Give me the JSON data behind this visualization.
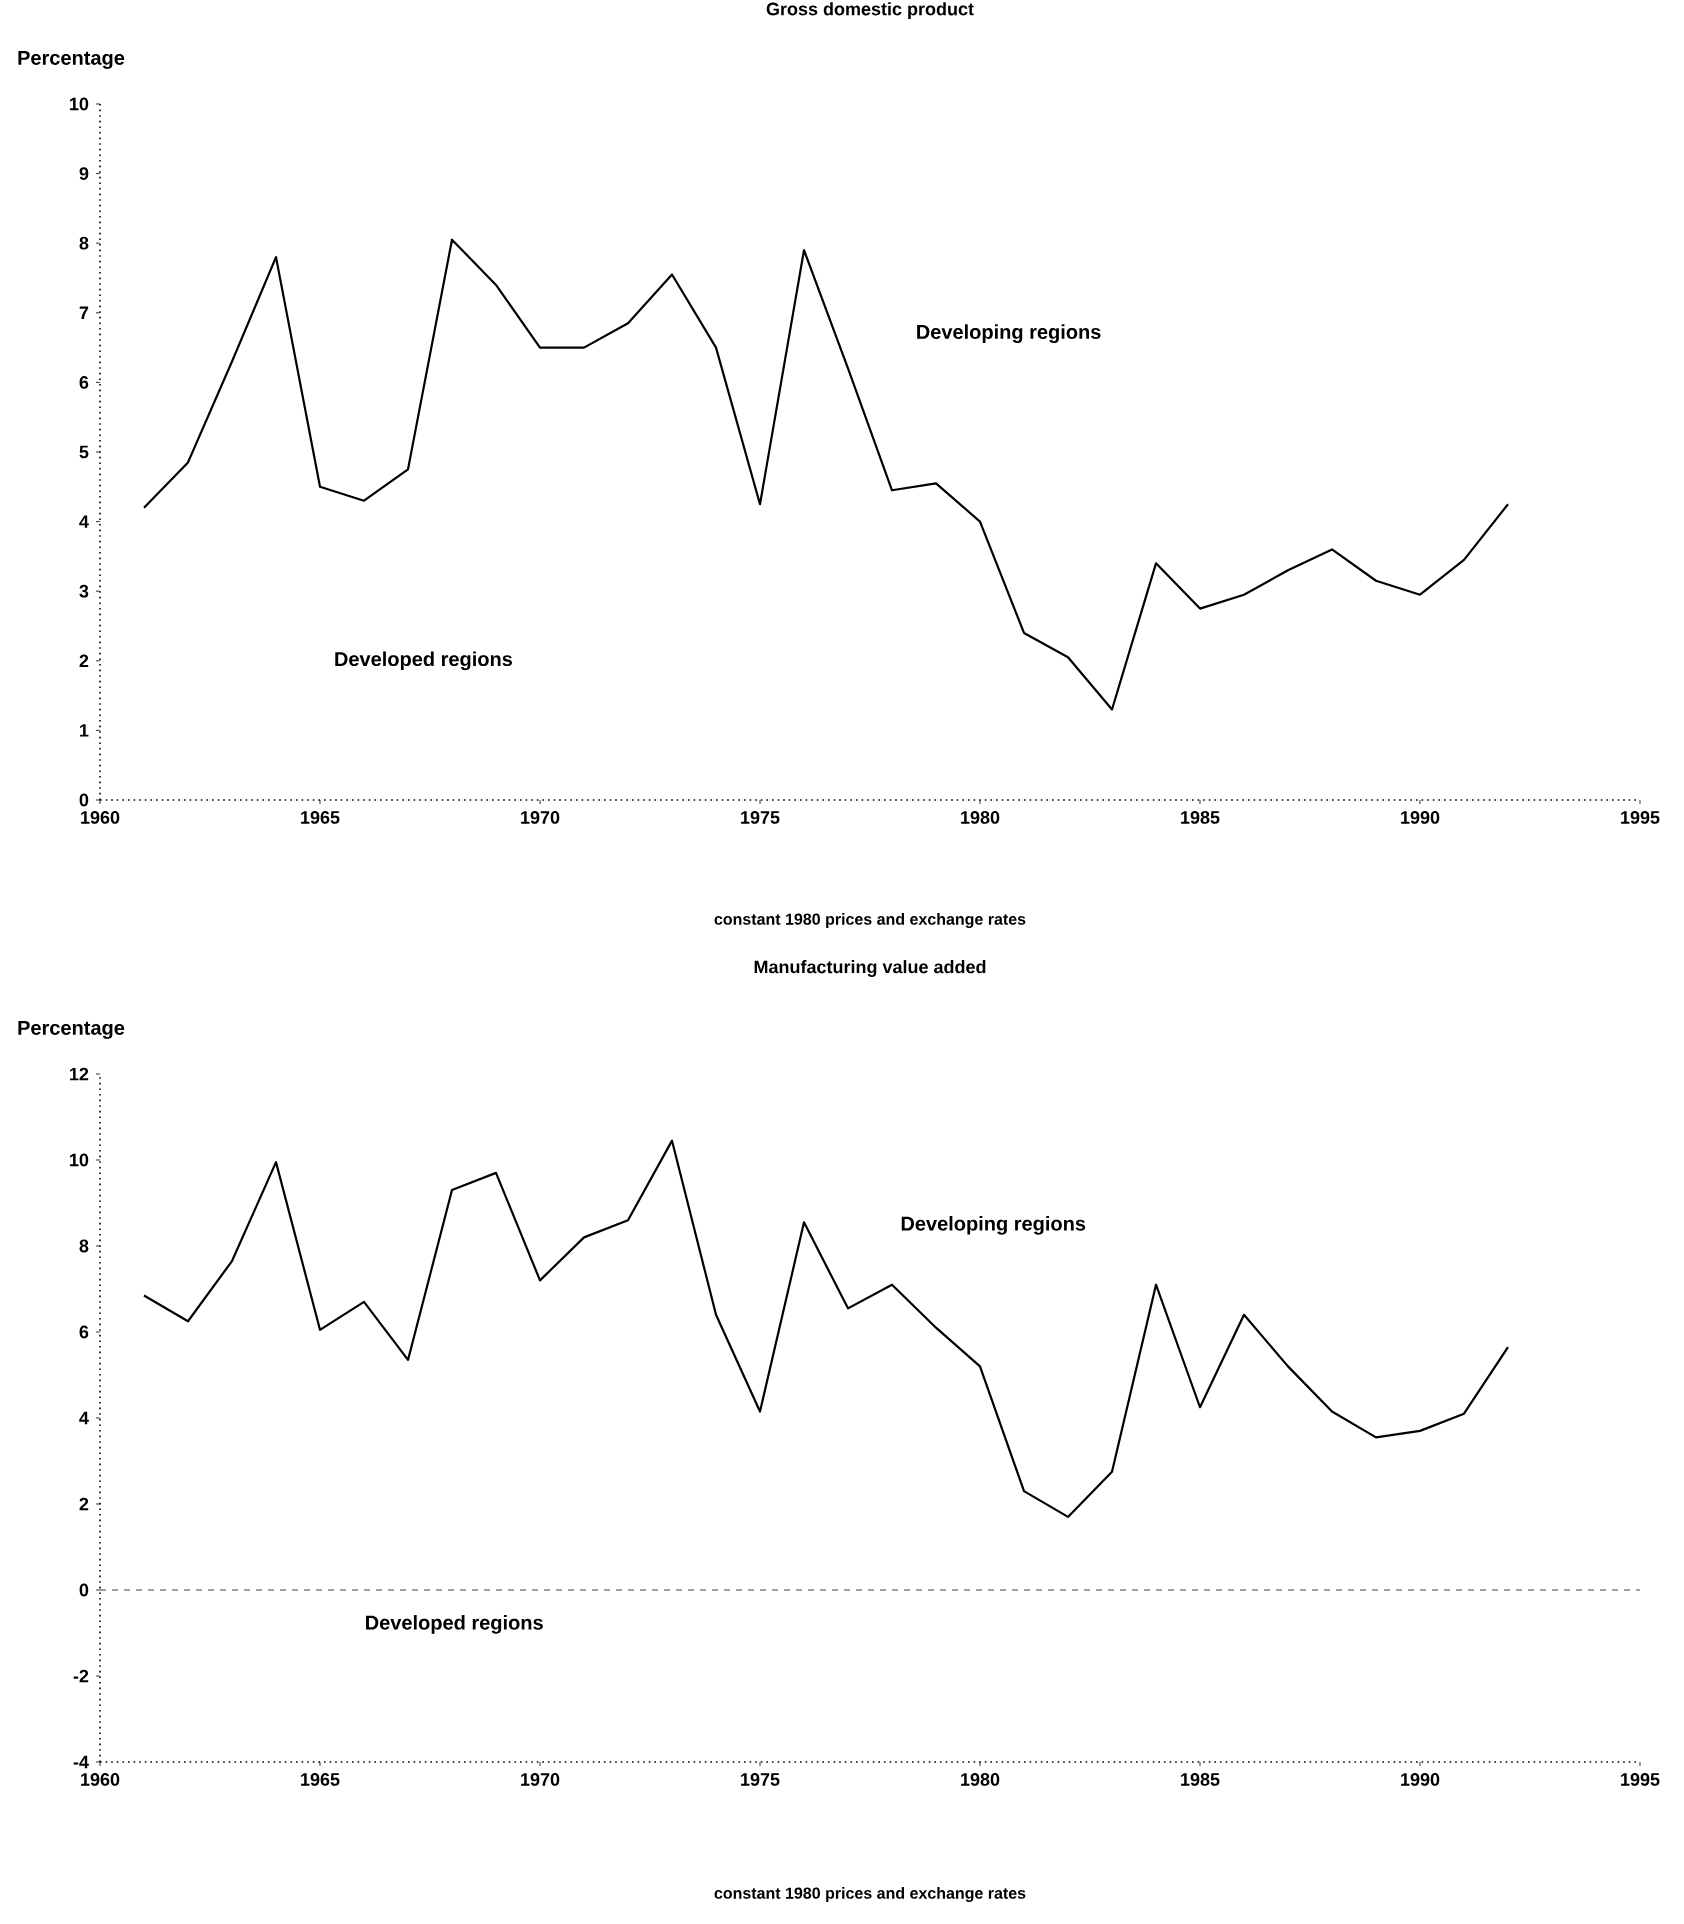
{
  "chart_data": [
    {
      "type": "line",
      "title": "Gross domestic product",
      "ylabel": "Percentage",
      "x": [
        1961,
        1962,
        1963,
        1964,
        1965,
        1966,
        1967,
        1968,
        1969,
        1970,
        1971,
        1972,
        1973,
        1974,
        1975,
        1976,
        1977,
        1978,
        1979,
        1980,
        1981,
        1982,
        1983,
        1984,
        1985,
        1986,
        1987,
        1988,
        1989,
        1990,
        1991,
        1992
      ],
      "series": [
        {
          "name": "Developing regions",
          "color": "#000000",
          "values": [
            4.2,
            4.85,
            6.3,
            7.8,
            4.5,
            4.3,
            4.75,
            8.05,
            7.4,
            6.5,
            6.5,
            6.85,
            7.55,
            6.5,
            4.25,
            7.9,
            6.2,
            4.45,
            4.55,
            4.0,
            2.4,
            2.05,
            1.3,
            3.4,
            2.75,
            2.95,
            3.3,
            3.6,
            3.15,
            2.95,
            3.45,
            4.25
          ]
        }
      ],
      "xlim": [
        1960,
        1995
      ],
      "xticks": [
        1960,
        1965,
        1970,
        1975,
        1980,
        1985,
        1990,
        1995
      ],
      "ylim": [
        0,
        10
      ],
      "yticks": [
        0,
        1,
        2,
        3,
        4,
        5,
        6,
        7,
        8,
        9,
        10
      ],
      "annotations": [
        "Developed regions",
        "constant 1980 prices and exchange rates"
      ]
    },
    {
      "type": "line",
      "title": "Manufacturing value added",
      "ylabel": "Percentage",
      "x": [
        1961,
        1962,
        1963,
        1964,
        1965,
        1966,
        1967,
        1968,
        1969,
        1970,
        1971,
        1972,
        1973,
        1974,
        1975,
        1976,
        1977,
        1978,
        1979,
        1980,
        1981,
        1982,
        1983,
        1984,
        1985,
        1986,
        1987,
        1988,
        1989,
        1990,
        1991,
        1992
      ],
      "series": [
        {
          "name": "Developing regions",
          "color": "#000000",
          "values": [
            6.85,
            6.25,
            7.65,
            9.95,
            6.05,
            6.7,
            5.35,
            9.3,
            9.7,
            7.2,
            8.2,
            8.6,
            10.45,
            6.4,
            4.15,
            8.55,
            6.55,
            7.1,
            6.1,
            5.2,
            2.3,
            1.7,
            2.75,
            7.1,
            4.25,
            6.4,
            5.2,
            4.15,
            3.55,
            3.7,
            4.1,
            5.65
          ]
        }
      ],
      "xlim": [
        1960,
        1995
      ],
      "xticks": [
        1960,
        1965,
        1970,
        1975,
        1980,
        1985,
        1990,
        1995
      ],
      "ylim": [
        -4,
        12
      ],
      "yticks": [
        -4,
        -2,
        0,
        2,
        4,
        6,
        8,
        10,
        12
      ],
      "ref_lines": [
        {
          "axis": "y",
          "value": 0,
          "line_style": "dashed"
        }
      ],
      "annotations": [
        "Developed regions",
        "constant 1980 prices and exchange rates"
      ]
    }
  ]
}
